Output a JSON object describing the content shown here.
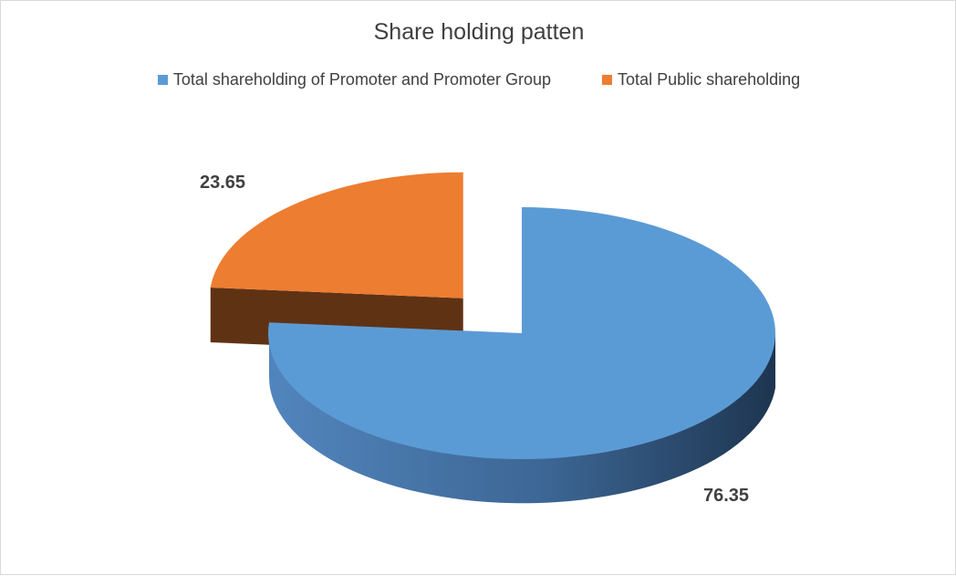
{
  "chart_data": {
    "type": "pie",
    "title": "Share holding patten",
    "categories": [
      "Total shareholding of Promoter and Promoter Group",
      "Total Public shareholding"
    ],
    "values": [
      76.35,
      23.65
    ],
    "data_labels": [
      "76.35",
      "23.65"
    ],
    "colors": [
      "#5b9bd5",
      "#ed7d31"
    ],
    "side_colors": [
      "#2e4d6b",
      "#603214"
    ],
    "legend_position": "top",
    "style": "3d-exploded"
  }
}
